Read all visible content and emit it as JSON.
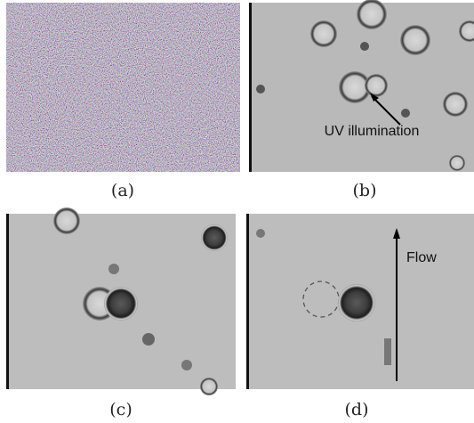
{
  "panels": [
    {
      "label": "(a)"
    },
    {
      "label": "(b)",
      "annotation": "UV illumination"
    },
    {
      "label": "(c)"
    },
    {
      "label": "(d)",
      "annotation": "Flow"
    }
  ]
}
